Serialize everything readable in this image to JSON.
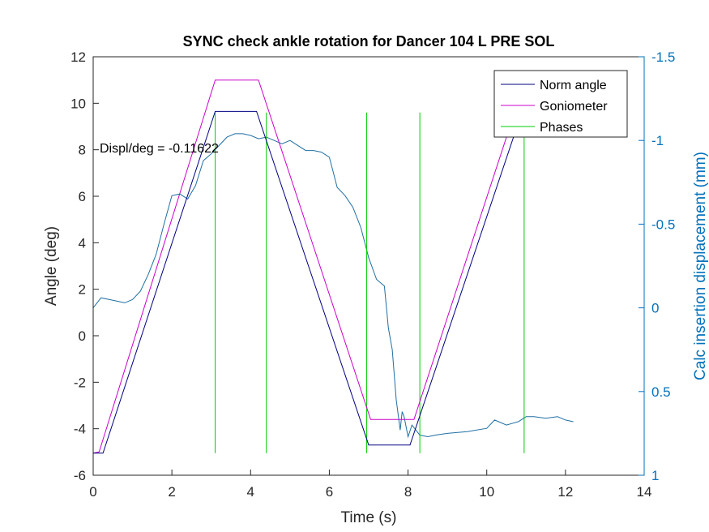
{
  "chart_data": {
    "type": "line",
    "title": "SYNC check ankle rotation for Dancer 104 L PRE SOL",
    "xlabel": "Time (s)",
    "ylabel": "Angle (deg)",
    "y2label": "Calc insertion displacement (mm)",
    "xlim": [
      0,
      14
    ],
    "ylim": [
      -6,
      12
    ],
    "y2lim": [
      1,
      -1.5
    ],
    "y2_reversed": true,
    "grid": false,
    "legend_position": "top-right",
    "xticks": [
      "0",
      "2",
      "4",
      "6",
      "8",
      "10",
      "12",
      "14"
    ],
    "yticks": [
      "-6",
      "-4",
      "-2",
      "0",
      "2",
      "4",
      "6",
      "8",
      "10",
      "12"
    ],
    "y2ticks": [
      "1",
      "0.5",
      "0",
      "-0.5",
      "-1",
      "-1.5"
    ],
    "annotation": "Displ/deg = -0.11622",
    "colors": {
      "norm_angle": "#000080",
      "goniometer": "#cc00cc",
      "phases": "#00cc00",
      "displacement": "#1f6fa3",
      "right_axis": "#0072bd"
    },
    "series": [
      {
        "name": "Norm angle",
        "axis": "left",
        "x": [
          0.0,
          0.25,
          3.1,
          4.15,
          7.0,
          8.05,
          10.9
        ],
        "y": [
          -5.05,
          -5.05,
          9.65,
          9.65,
          -4.7,
          -4.7,
          9.65
        ]
      },
      {
        "name": "Goniometer",
        "axis": "left",
        "x": [
          0.0,
          0.15,
          3.1,
          4.2,
          7.05,
          8.15,
          10.9
        ],
        "y": [
          -5.05,
          -5.0,
          11.0,
          11.0,
          -3.6,
          -3.6,
          10.6
        ]
      },
      {
        "name": "Phases",
        "axis": "left",
        "type": "vlines",
        "x": [
          3.1,
          4.4,
          6.95,
          8.3,
          10.95
        ],
        "y_from": -5.05,
        "y_to": 9.6
      },
      {
        "axis": "right",
        "x": [
          0.0,
          0.2,
          0.4,
          0.6,
          0.8,
          1.0,
          1.2,
          1.4,
          1.6,
          1.8,
          2.0,
          2.2,
          2.4,
          2.6,
          2.8,
          3.0,
          3.2,
          3.4,
          3.6,
          3.8,
          4.0,
          4.2,
          4.4,
          4.6,
          4.8,
          5.0,
          5.2,
          5.4,
          5.6,
          5.8,
          6.0,
          6.1,
          6.2,
          6.4,
          6.6,
          6.8,
          7.0,
          7.2,
          7.4,
          7.5,
          7.6,
          7.7,
          7.8,
          7.85,
          7.9,
          8.0,
          8.1,
          8.2,
          8.3,
          8.5,
          8.7,
          9.0,
          9.5,
          10.0,
          10.2,
          10.5,
          10.8,
          11.0,
          11.2,
          11.5,
          11.8,
          12.0,
          12.2
        ],
        "y": [
          0.0,
          -0.06,
          -0.05,
          -0.04,
          -0.03,
          -0.05,
          -0.1,
          -0.2,
          -0.32,
          -0.5,
          -0.67,
          -0.68,
          -0.65,
          -0.73,
          -0.88,
          -0.92,
          -0.97,
          -1.02,
          -1.04,
          -1.04,
          -1.03,
          -1.01,
          -1.02,
          -1.0,
          -0.98,
          -1.0,
          -0.97,
          -0.94,
          -0.94,
          -0.93,
          -0.9,
          -0.81,
          -0.72,
          -0.67,
          -0.6,
          -0.48,
          -0.3,
          -0.17,
          -0.13,
          0.12,
          0.25,
          0.55,
          0.73,
          0.62,
          0.65,
          0.77,
          0.7,
          0.73,
          0.76,
          0.77,
          0.76,
          0.75,
          0.74,
          0.72,
          0.67,
          0.7,
          0.68,
          0.65,
          0.65,
          0.66,
          0.65,
          0.67,
          0.68
        ]
      }
    ]
  }
}
